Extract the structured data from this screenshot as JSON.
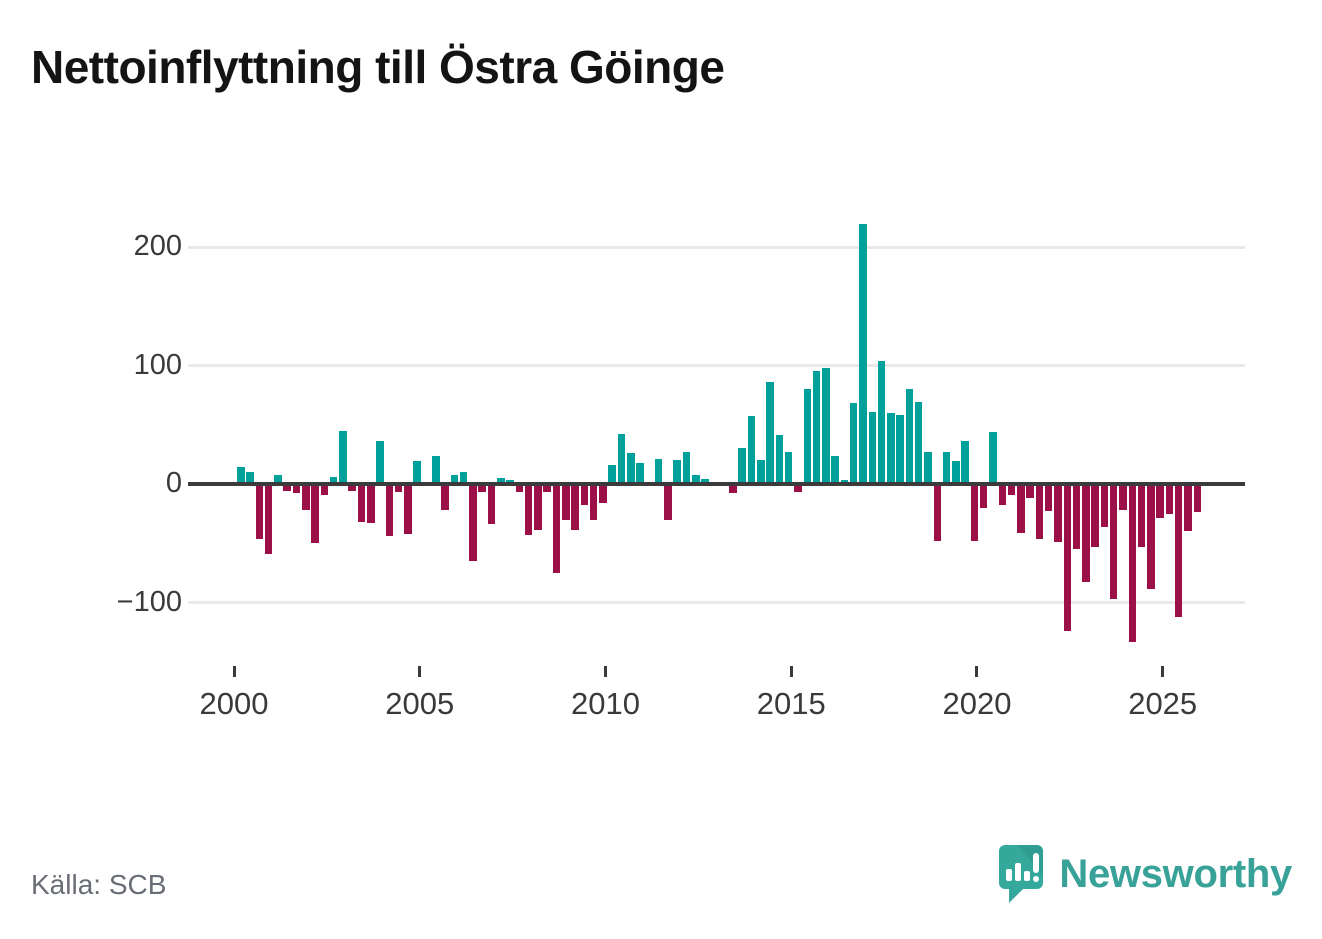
{
  "header": {
    "title": "Nettoinflyttning till Östra Göinge"
  },
  "chart_data": {
    "type": "bar",
    "title": "Nettoinflyttning till Östra Göinge",
    "period": "quarterly",
    "start": "2000-Q1",
    "end": "2025-Q4",
    "series_by_year": {
      "2000": [
        14,
        10,
        -46,
        -59
      ],
      "2001": [
        8,
        -6,
        -8,
        -22
      ],
      "2002": [
        -50,
        -9,
        6,
        45
      ],
      "2003": [
        -6,
        -32,
        -33,
        36
      ],
      "2004": [
        -44,
        -7,
        -42,
        19
      ],
      "2005": [
        0,
        24,
        -22,
        8
      ],
      "2006": [
        10,
        -65,
        -7,
        -34
      ],
      "2007": [
        5,
        3,
        -7,
        -43
      ],
      "2008": [
        -39,
        -7,
        -75,
        -30
      ],
      "2009": [
        -39,
        -18,
        -30,
        -16
      ],
      "2010": [
        16,
        42,
        26,
        18
      ],
      "2011": [
        0,
        21,
        -30,
        20
      ],
      "2012": [
        27,
        8,
        4,
        0
      ],
      "2013": [
        0,
        -8,
        30,
        57
      ],
      "2014": [
        20,
        86,
        41,
        27
      ],
      "2015": [
        -7,
        80,
        95,
        98
      ],
      "2016": [
        24,
        3,
        68,
        219
      ],
      "2017": [
        61,
        104,
        60,
        58
      ],
      "2018": [
        80,
        69,
        27,
        -48
      ],
      "2019": [
        27,
        19,
        36,
        -48
      ],
      "2020": [
        -20,
        44,
        -18,
        -9
      ],
      "2021": [
        -41,
        -12,
        -46,
        -23
      ],
      "2022": [
        -49,
        -124,
        -55,
        -83
      ],
      "2023": [
        -53,
        -36,
        -97,
        -22
      ],
      "2024": [
        -133,
        -53,
        -89,
        -29
      ],
      "2025": [
        -25,
        -112,
        -40,
        -24
      ]
    },
    "yticks": [
      200,
      100,
      0,
      -100
    ],
    "ytick_labels": [
      "200",
      "100",
      "0",
      "−100"
    ],
    "xticks": [
      2000,
      2005,
      2010,
      2015,
      2020,
      2025
    ],
    "ylim": [
      -140,
      230
    ],
    "grid": "horizontal",
    "legend": "none",
    "colors": {
      "positive": "#00a09b",
      "negative": "#9c1048",
      "zero_axis": "#3b3b3b",
      "gridline": "#e9e9e9"
    },
    "source": "Källa: SCB"
  },
  "brand": {
    "logo_icon": "newsworthy-speech-bubble-chart-icon",
    "logo_text": "Newsworthy",
    "logo_color": "#38a299"
  }
}
